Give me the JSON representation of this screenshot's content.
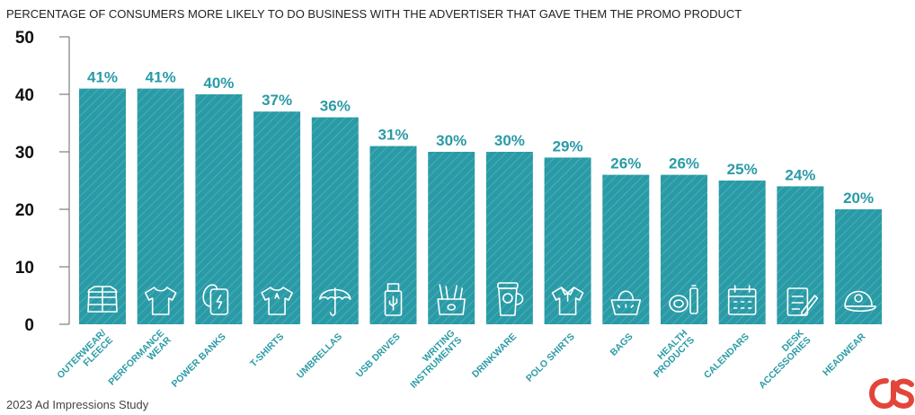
{
  "chart_data": {
    "type": "bar",
    "title": "PERCENTAGE OF CONSUMERS MORE LIKELY TO DO BUSINESS WITH THE ADVERTISER THAT GAVE THEM THE PROMO PRODUCT",
    "categories": [
      [
        "OUTERWEAR/",
        "FLEECE"
      ],
      [
        "PERFORMANCE",
        "WEAR"
      ],
      [
        "POWER BANKS"
      ],
      [
        "T-SHIRTS"
      ],
      [
        "UMBRELLAS"
      ],
      [
        "USB DRIVES"
      ],
      [
        "WRITING",
        "INSTRUMENTS"
      ],
      [
        "DRINKWARE"
      ],
      [
        "POLO SHIRTS"
      ],
      [
        "BAGS"
      ],
      [
        "HEALTH",
        "PRODUCTS"
      ],
      [
        "CALENDARS"
      ],
      [
        "DESK",
        "ACCESSORIES"
      ],
      [
        "HEADWEAR"
      ]
    ],
    "values": [
      41,
      41,
      40,
      37,
      36,
      31,
      30,
      30,
      29,
      26,
      26,
      25,
      24,
      20
    ],
    "data_labels": [
      "41%",
      "41%",
      "40%",
      "37%",
      "36%",
      "31%",
      "30%",
      "30%",
      "29%",
      "26%",
      "26%",
      "25%",
      "24%",
      "20%"
    ],
    "icons": [
      "jacket-icon",
      "shirt-icon",
      "power-bank-icon",
      "tshirt-icon",
      "umbrella-icon",
      "usb-drive-icon",
      "pen-cup-icon",
      "tumbler-icon",
      "polo-shirt-icon",
      "bag-icon",
      "health-products-icon",
      "calendar-icon",
      "notepad-icon",
      "cap-icon"
    ],
    "yticks": [
      0,
      10,
      20,
      30,
      40,
      50
    ],
    "ylim": [
      0,
      50
    ],
    "grid": false,
    "bar_color": "#2a9ba6",
    "label_color": "#2a9ba6"
  },
  "footer": {
    "source": "2023 Ad Impressions Study"
  },
  "brand": {
    "logo_text": "aS",
    "logo_color": "#e2463b"
  }
}
